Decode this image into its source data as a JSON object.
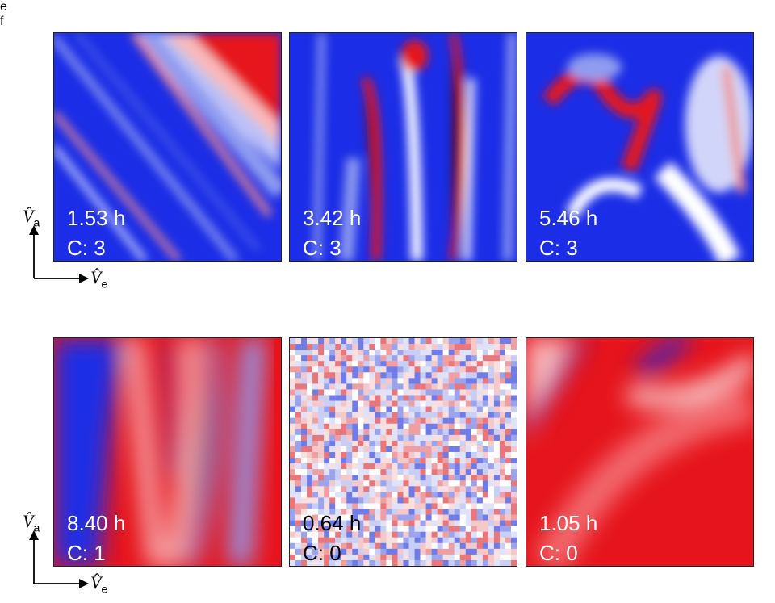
{
  "panels": [
    {
      "label": "e",
      "images": [
        {
          "time": "1.53 h",
          "c": "C: 3"
        },
        {
          "time": "3.42 h",
          "c": "C: 3"
        },
        {
          "time": "5.46 h",
          "c": "C: 3"
        }
      ],
      "axis_y": {
        "symbol": "V̂",
        "subscript": "a"
      },
      "axis_x": {
        "symbol": "V̂",
        "subscript": "e"
      }
    },
    {
      "label": "f",
      "images": [
        {
          "time": "8.40 h",
          "c": "C: 1"
        },
        {
          "time": "0.64 h",
          "c": "C: 0"
        },
        {
          "time": "1.05 h",
          "c": "C: 0"
        }
      ],
      "axis_y": {
        "symbol": "V̂",
        "subscript": "a"
      },
      "axis_x": {
        "symbol": "V̂",
        "subscript": "e"
      }
    }
  ]
}
